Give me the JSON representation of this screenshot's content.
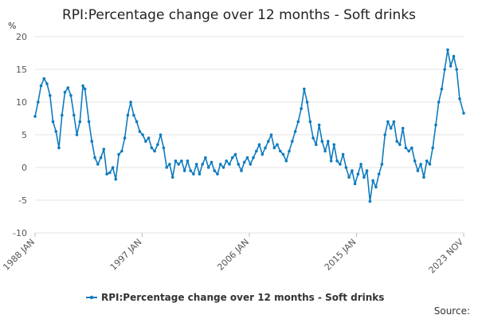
{
  "chart_data": {
    "type": "line",
    "title": "RPI:Percentage change over 12 months - Soft drinks",
    "unit_label": "%",
    "ylim": [
      -10,
      20
    ],
    "y_ticks": [
      20,
      15,
      10,
      5,
      0,
      -5,
      -10
    ],
    "x_ticks": [
      "1988 JAN",
      "1997 JAN",
      "2006 JAN",
      "2015 JAN",
      "2023 NOV"
    ],
    "x_start": "1988-01",
    "x_end": "2023-11",
    "legend_position": "bottom",
    "grid": true,
    "line_color": "#0f7bbf",
    "series": [
      {
        "name": "RPI:Percentage change over 12 months - Soft drinks",
        "points": [
          [
            "1988-01",
            7.8
          ],
          [
            "1988-04",
            10.0
          ],
          [
            "1988-07",
            12.5
          ],
          [
            "1988-10",
            13.6
          ],
          [
            "1989-01",
            12.8
          ],
          [
            "1989-04",
            11.0
          ],
          [
            "1989-07",
            7.0
          ],
          [
            "1989-10",
            5.5
          ],
          [
            "1990-01",
            3.0
          ],
          [
            "1990-04",
            8.0
          ],
          [
            "1990-07",
            11.5
          ],
          [
            "1990-10",
            12.2
          ],
          [
            "1991-01",
            11.0
          ],
          [
            "1991-04",
            8.0
          ],
          [
            "1991-07",
            5.0
          ],
          [
            "1991-10",
            7.0
          ],
          [
            "1992-01",
            12.5
          ],
          [
            "1992-03",
            12.0
          ],
          [
            "1992-07",
            7.0
          ],
          [
            "1992-10",
            4.0
          ],
          [
            "1993-01",
            1.5
          ],
          [
            "1993-04",
            0.5
          ],
          [
            "1993-07",
            1.5
          ],
          [
            "1993-10",
            2.8
          ],
          [
            "1994-01",
            -1.0
          ],
          [
            "1994-04",
            -0.8
          ],
          [
            "1994-07",
            0.0
          ],
          [
            "1994-10",
            -1.8
          ],
          [
            "1995-01",
            2.0
          ],
          [
            "1995-04",
            2.5
          ],
          [
            "1995-07",
            4.5
          ],
          [
            "1995-10",
            8.0
          ],
          [
            "1996-01",
            10.0
          ],
          [
            "1996-04",
            8.0
          ],
          [
            "1996-07",
            7.0
          ],
          [
            "1996-10",
            5.5
          ],
          [
            "1997-01",
            5.0
          ],
          [
            "1997-04",
            4.0
          ],
          [
            "1997-07",
            4.5
          ],
          [
            "1997-10",
            3.0
          ],
          [
            "1998-01",
            2.5
          ],
          [
            "1998-04",
            3.5
          ],
          [
            "1998-07",
            5.0
          ],
          [
            "1998-10",
            3.0
          ],
          [
            "1999-01",
            0.0
          ],
          [
            "1999-04",
            0.5
          ],
          [
            "1999-07",
            -1.5
          ],
          [
            "1999-10",
            1.0
          ],
          [
            "2000-01",
            0.5
          ],
          [
            "2000-04",
            1.0
          ],
          [
            "2000-07",
            -0.5
          ],
          [
            "2000-10",
            1.0
          ],
          [
            "2001-01",
            -0.5
          ],
          [
            "2001-04",
            -1.0
          ],
          [
            "2001-07",
            0.5
          ],
          [
            "2001-10",
            -1.0
          ],
          [
            "2002-01",
            0.5
          ],
          [
            "2002-04",
            1.5
          ],
          [
            "2002-07",
            0.0
          ],
          [
            "2002-10",
            0.8
          ],
          [
            "2003-01",
            -0.5
          ],
          [
            "2003-04",
            -1.0
          ],
          [
            "2003-07",
            0.5
          ],
          [
            "2003-10",
            0.0
          ],
          [
            "2004-01",
            1.0
          ],
          [
            "2004-04",
            0.5
          ],
          [
            "2004-07",
            1.5
          ],
          [
            "2004-10",
            2.0
          ],
          [
            "2005-01",
            0.5
          ],
          [
            "2005-04",
            -0.5
          ],
          [
            "2005-07",
            0.8
          ],
          [
            "2005-10",
            1.5
          ],
          [
            "2006-01",
            0.5
          ],
          [
            "2006-04",
            1.5
          ],
          [
            "2006-07",
            2.5
          ],
          [
            "2006-10",
            3.5
          ],
          [
            "2007-01",
            2.0
          ],
          [
            "2007-04",
            3.0
          ],
          [
            "2007-07",
            4.0
          ],
          [
            "2007-10",
            5.0
          ],
          [
            "2008-01",
            3.0
          ],
          [
            "2008-04",
            3.5
          ],
          [
            "2008-07",
            2.5
          ],
          [
            "2008-10",
            2.0
          ],
          [
            "2009-01",
            1.0
          ],
          [
            "2009-04",
            2.5
          ],
          [
            "2009-07",
            4.0
          ],
          [
            "2009-10",
            5.5
          ],
          [
            "2010-01",
            7.0
          ],
          [
            "2010-04",
            9.0
          ],
          [
            "2010-07",
            12.0
          ],
          [
            "2010-10",
            10.0
          ],
          [
            "2011-01",
            7.0
          ],
          [
            "2011-04",
            4.5
          ],
          [
            "2011-07",
            3.5
          ],
          [
            "2011-10",
            6.5
          ],
          [
            "2012-01",
            4.0
          ],
          [
            "2012-04",
            2.5
          ],
          [
            "2012-07",
            4.0
          ],
          [
            "2012-10",
            1.0
          ],
          [
            "2013-01",
            3.5
          ],
          [
            "2013-04",
            1.0
          ],
          [
            "2013-07",
            0.5
          ],
          [
            "2013-10",
            2.0
          ],
          [
            "2014-01",
            0.0
          ],
          [
            "2014-04",
            -1.5
          ],
          [
            "2014-07",
            -0.5
          ],
          [
            "2014-10",
            -2.5
          ],
          [
            "2015-01",
            -1.0
          ],
          [
            "2015-04",
            0.5
          ],
          [
            "2015-07",
            -1.5
          ],
          [
            "2015-10",
            -0.5
          ],
          [
            "2016-01",
            -5.2
          ],
          [
            "2016-04",
            -2.0
          ],
          [
            "2016-07",
            -3.0
          ],
          [
            "2016-10",
            -1.0
          ],
          [
            "2017-01",
            0.5
          ],
          [
            "2017-04",
            5.0
          ],
          [
            "2017-07",
            7.0
          ],
          [
            "2017-10",
            6.0
          ],
          [
            "2018-01",
            7.0
          ],
          [
            "2018-04",
            4.0
          ],
          [
            "2018-07",
            3.5
          ],
          [
            "2018-10",
            6.0
          ],
          [
            "2019-01",
            3.0
          ],
          [
            "2019-04",
            2.5
          ],
          [
            "2019-07",
            3.0
          ],
          [
            "2019-10",
            1.0
          ],
          [
            "2020-01",
            -0.5
          ],
          [
            "2020-04",
            0.5
          ],
          [
            "2020-07",
            -1.5
          ],
          [
            "2020-10",
            1.0
          ],
          [
            "2021-01",
            0.5
          ],
          [
            "2021-04",
            3.0
          ],
          [
            "2021-07",
            6.5
          ],
          [
            "2021-10",
            10.0
          ],
          [
            "2022-01",
            12.0
          ],
          [
            "2022-04",
            15.0
          ],
          [
            "2022-07",
            18.0
          ],
          [
            "2022-10",
            15.5
          ],
          [
            "2023-01",
            17.0
          ],
          [
            "2023-04",
            15.0
          ],
          [
            "2023-07",
            10.5
          ],
          [
            "2023-11",
            8.3
          ]
        ]
      }
    ]
  },
  "source_label": "Source:"
}
